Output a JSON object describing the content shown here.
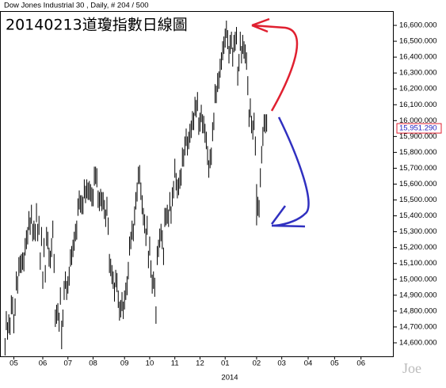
{
  "chart_data": {
    "type": "ohlc",
    "header": "Dow Jones Industrial 30 , Daily, # 204 / 500",
    "title": "20140213道瓊指數日線圖",
    "year_label": "2014",
    "watermark": "Joe",
    "color": "#000000",
    "last_value": {
      "value": 15951.29,
      "label": "15,951.290"
    },
    "xlim": [
      -4,
      309
    ],
    "xticks": [
      {
        "value": 7,
        "label": "05"
      },
      {
        "value": 30,
        "label": "06"
      },
      {
        "value": 50,
        "label": "07"
      },
      {
        "value": 70,
        "label": "08"
      },
      {
        "value": 95,
        "label": "09"
      },
      {
        "value": 115,
        "label": "10"
      },
      {
        "value": 135,
        "label": "11"
      },
      {
        "value": 155,
        "label": "12"
      },
      {
        "value": 175,
        "label": "01"
      },
      {
        "value": 200,
        "label": "02"
      },
      {
        "value": 220,
        "label": "03"
      },
      {
        "value": 241,
        "label": "04"
      },
      {
        "value": 262,
        "label": "05"
      },
      {
        "value": 283,
        "label": "06"
      }
    ],
    "ylim": [
      14515,
      16685
    ],
    "yticks": [
      {
        "value": 14600,
        "label": "14,600.000"
      },
      {
        "value": 14700,
        "label": "14,700.000"
      },
      {
        "value": 14800,
        "label": "14,800.000"
      },
      {
        "value": 14900,
        "label": "14,900.000"
      },
      {
        "value": 15000,
        "label": "15,000.000"
      },
      {
        "value": 15100,
        "label": "15,100.000"
      },
      {
        "value": 15200,
        "label": "15,200.000"
      },
      {
        "value": 15300,
        "label": "15,300.000"
      },
      {
        "value": 15400,
        "label": "15,400.000"
      },
      {
        "value": 15500,
        "label": "15,500.000"
      },
      {
        "value": 15600,
        "label": "15,600.000"
      },
      {
        "value": 15700,
        "label": "15,700.000"
      },
      {
        "value": 15800,
        "label": "15,800.000"
      },
      {
        "value": 15900,
        "label": "15,900.000"
      },
      {
        "value": 16000,
        "label": "16,000.000"
      },
      {
        "value": 16100,
        "label": "16,100.000"
      },
      {
        "value": 16200,
        "label": "16,200.000"
      },
      {
        "value": 16300,
        "label": "16,300.000"
      },
      {
        "value": 16400,
        "label": "16,400.000"
      },
      {
        "value": 16500,
        "label": "16,500.000"
      },
      {
        "value": 16600,
        "label": "16,600.000"
      }
    ],
    "x": [
      0,
      1,
      2,
      3,
      4,
      5,
      6,
      7,
      8,
      9,
      10,
      11,
      12,
      13,
      14,
      15,
      16,
      17,
      18,
      19,
      20,
      21,
      22,
      23,
      24,
      25,
      26,
      27,
      28,
      29,
      30,
      31,
      32,
      33,
      34,
      35,
      36,
      37,
      38,
      39,
      40,
      41,
      42,
      43,
      44,
      45,
      46,
      47,
      48,
      49,
      50,
      51,
      52,
      53,
      54,
      55,
      56,
      57,
      58,
      59,
      60,
      61,
      62,
      63,
      64,
      65,
      66,
      67,
      68,
      69,
      70,
      71,
      72,
      73,
      74,
      75,
      76,
      77,
      78,
      79,
      80,
      81,
      82,
      83,
      84,
      85,
      86,
      87,
      88,
      89,
      90,
      91,
      92,
      93,
      94,
      95,
      96,
      97,
      98,
      99,
      100,
      101,
      102,
      103,
      104,
      105,
      106,
      107,
      108,
      109,
      110,
      111,
      112,
      113,
      114,
      115,
      116,
      117,
      118,
      119,
      120,
      121,
      122,
      123,
      124,
      125,
      126,
      127,
      128,
      129,
      130,
      131,
      132,
      133,
      134,
      135,
      136,
      137,
      138,
      139,
      140,
      141,
      142,
      143,
      144,
      145,
      146,
      147,
      148,
      149,
      150,
      151,
      152,
      153,
      154,
      155,
      156,
      157,
      158,
      159,
      160,
      161,
      162,
      163,
      164,
      165,
      166,
      167,
      168,
      169,
      170,
      171,
      172,
      173,
      174,
      175,
      176,
      177,
      178,
      179,
      180,
      181,
      182,
      183,
      184,
      185,
      186,
      187,
      188,
      189,
      190,
      191,
      192,
      193,
      194,
      195,
      196,
      197,
      198,
      199,
      200,
      201,
      202,
      203,
      204,
      205,
      206,
      207,
      208
    ],
    "high": [
      14630,
      14800,
      14730,
      14780,
      14760,
      14900,
      14890,
      14780,
      14880,
      15050,
      15020,
      15140,
      15150,
      15160,
      15170,
      15170,
      15260,
      15310,
      15330,
      15430,
      15390,
      15470,
      15350,
      15370,
      15350,
      15480,
      15350,
      15400,
      15170,
      15330,
      15050,
      15260,
      15090,
      15330,
      15300,
      15200,
      15180,
      15260,
      15370,
      15160,
      14810,
      14840,
      14850,
      14790,
      14950,
      14740,
      14810,
      14990,
      15050,
      14990,
      15020,
      15080,
      15190,
      15210,
      15250,
      15300,
      15350,
      15370,
      15510,
      15560,
      15530,
      15530,
      15520,
      15630,
      15590,
      15630,
      15610,
      15620,
      15600,
      15580,
      15570,
      15710,
      15710,
      15700,
      15560,
      15550,
      15570,
      15550,
      15550,
      15500,
      15440,
      15520,
      15390,
      15160,
      15130,
      15090,
      15050,
      14980,
      15060,
      15040,
      14930,
      14860,
      14870,
      14920,
      14860,
      14930,
      14980,
      15020,
      15110,
      15270,
      15300,
      15370,
      15350,
      15460,
      15550,
      15610,
      15710,
      15720,
      15610,
      15530,
      15450,
      15410,
      15320,
      15400,
      15180,
      15270,
      15120,
      15030,
      15050,
      15010,
      14830,
      15210,
      15250,
      15320,
      15350,
      15310,
      15200,
      15450,
      15450,
      15470,
      15440,
      15550,
      15460,
      15580,
      15620,
      15760,
      15670,
      15630,
      15640,
      15690,
      15700,
      15830,
      15820,
      15900,
      15950,
      15900,
      15930,
      15980,
      16000,
      16060,
      16050,
      16150,
      16130,
      16180,
      16020,
      16050,
      16100,
      16040,
      16030,
      15980,
      15930,
      15840,
      15750,
      15820,
      15830,
      15990,
      16050,
      16230,
      16220,
      16300,
      16310,
      16390,
      16430,
      16500,
      16530,
      16580,
      16630,
      16570,
      16470,
      16540,
      16560,
      16460,
      16540,
      16560,
      16590,
      16340,
      16420,
      16560,
      16470,
      16540,
      16500,
      16480,
      16430,
      16280,
      16070,
      16140,
      16030,
      16000,
      16050,
      15900,
      15600,
      15520,
      15500,
      15700,
      15840,
      15960,
      16040,
      16040,
      16040
    ],
    "low": [
      14520,
      14680,
      14620,
      14660,
      14650,
      14780,
      14780,
      14660,
      14770,
      14930,
      14910,
      15020,
      15040,
      15040,
      15060,
      15050,
      15150,
      15190,
      15220,
      15310,
      15280,
      15350,
      15240,
      15250,
      15240,
      15360,
      15240,
      15280,
      15060,
      15210,
      14940,
      15140,
      14980,
      15210,
      15190,
      15080,
      15070,
      15140,
      15260,
      15040,
      14700,
      14720,
      14740,
      14670,
      14840,
      14560,
      14700,
      14870,
      14940,
      14870,
      14910,
      14960,
      15080,
      15090,
      15140,
      15180,
      15240,
      15250,
      15400,
      15440,
      15420,
      15410,
      15410,
      15510,
      15480,
      15510,
      15500,
      15500,
      15490,
      15460,
      15460,
      15590,
      15600,
      15580,
      15450,
      15430,
      15460,
      15430,
      15440,
      15380,
      15330,
      15400,
      15280,
      15040,
      15020,
      14970,
      14940,
      14860,
      14950,
      14920,
      14820,
      14740,
      14760,
      14800,
      14750,
      14810,
      14870,
      14900,
      15000,
      15150,
      15190,
      15250,
      15240,
      15340,
      15440,
      15490,
      15600,
      15600,
      15500,
      15410,
      15340,
      15290,
      15210,
      15280,
      15070,
      15150,
      15010,
      14910,
      14940,
      14890,
      14720,
      15090,
      15140,
      15200,
      15240,
      15190,
      15090,
      15330,
      15340,
      15350,
      15330,
      15430,
      15350,
      15460,
      15510,
      15640,
      15560,
      15510,
      15530,
      15570,
      15590,
      15710,
      15710,
      15780,
      15840,
      15780,
      15820,
      15860,
      15890,
      15940,
      15940,
      16030,
      16020,
      16060,
      15910,
      15930,
      15990,
      15920,
      15920,
      15860,
      15820,
      15720,
      15640,
      15700,
      15720,
      15870,
      15940,
      16110,
      16110,
      16180,
      16200,
      16270,
      16320,
      16380,
      16420,
      16460,
      16520,
      16450,
      16360,
      16420,
      16450,
      16340,
      16430,
      16440,
      16480,
      16220,
      16310,
      16440,
      16360,
      16420,
      16390,
      16360,
      16320,
      16160,
      15960,
      16020,
      15920,
      15880,
      15940,
      15780,
      15340,
      15400,
      15390,
      15580,
      15730,
      15840,
      15930,
      15920,
      15930
    ]
  }
}
